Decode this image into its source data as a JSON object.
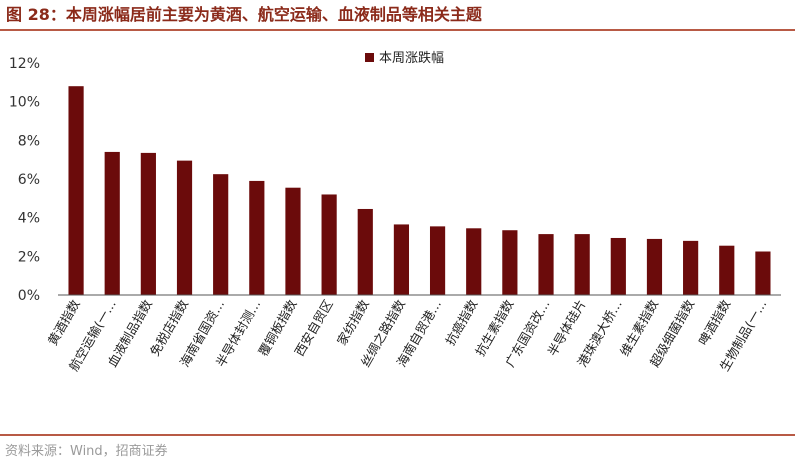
{
  "figure": {
    "title": "图 28：本周涨幅居前主要为黄酒、航空运输、血液制品等相关主题",
    "source": "资料来源：Wind，招商证券"
  },
  "colors": {
    "bar": "#6b0b0b",
    "title": "#8b2a1a",
    "rule": "#b85a45",
    "axis": "#555555"
  },
  "chart_data": {
    "type": "bar",
    "categories": [
      "黄酒指数",
      "航空运输(一…",
      "血液制品指数",
      "免税店指数",
      "海南省国资…",
      "半导体封测…",
      "覆铜板指数",
      "西安自贸区",
      "家纺指数",
      "丝绸之路指数",
      "海南自贸港…",
      "抗癌指数",
      "抗生素指数",
      "广东国资改…",
      "半导体硅片",
      "港珠澳大桥…",
      "维生素指数",
      "超级细菌指数",
      "啤酒指数",
      "生物制品(一…"
    ],
    "series": [
      {
        "name": "本周涨跌幅",
        "values": [
          10.8,
          7.4,
          7.35,
          6.95,
          6.25,
          5.9,
          5.55,
          5.2,
          4.45,
          3.65,
          3.55,
          3.45,
          3.35,
          3.15,
          3.15,
          2.95,
          2.9,
          2.8,
          2.55,
          2.25
        ]
      }
    ],
    "yticks": [
      "0%",
      "2%",
      "4%",
      "6%",
      "8%",
      "10%",
      "12%"
    ],
    "ylim": [
      0,
      12
    ],
    "legend": "top-center",
    "grid": false
  }
}
